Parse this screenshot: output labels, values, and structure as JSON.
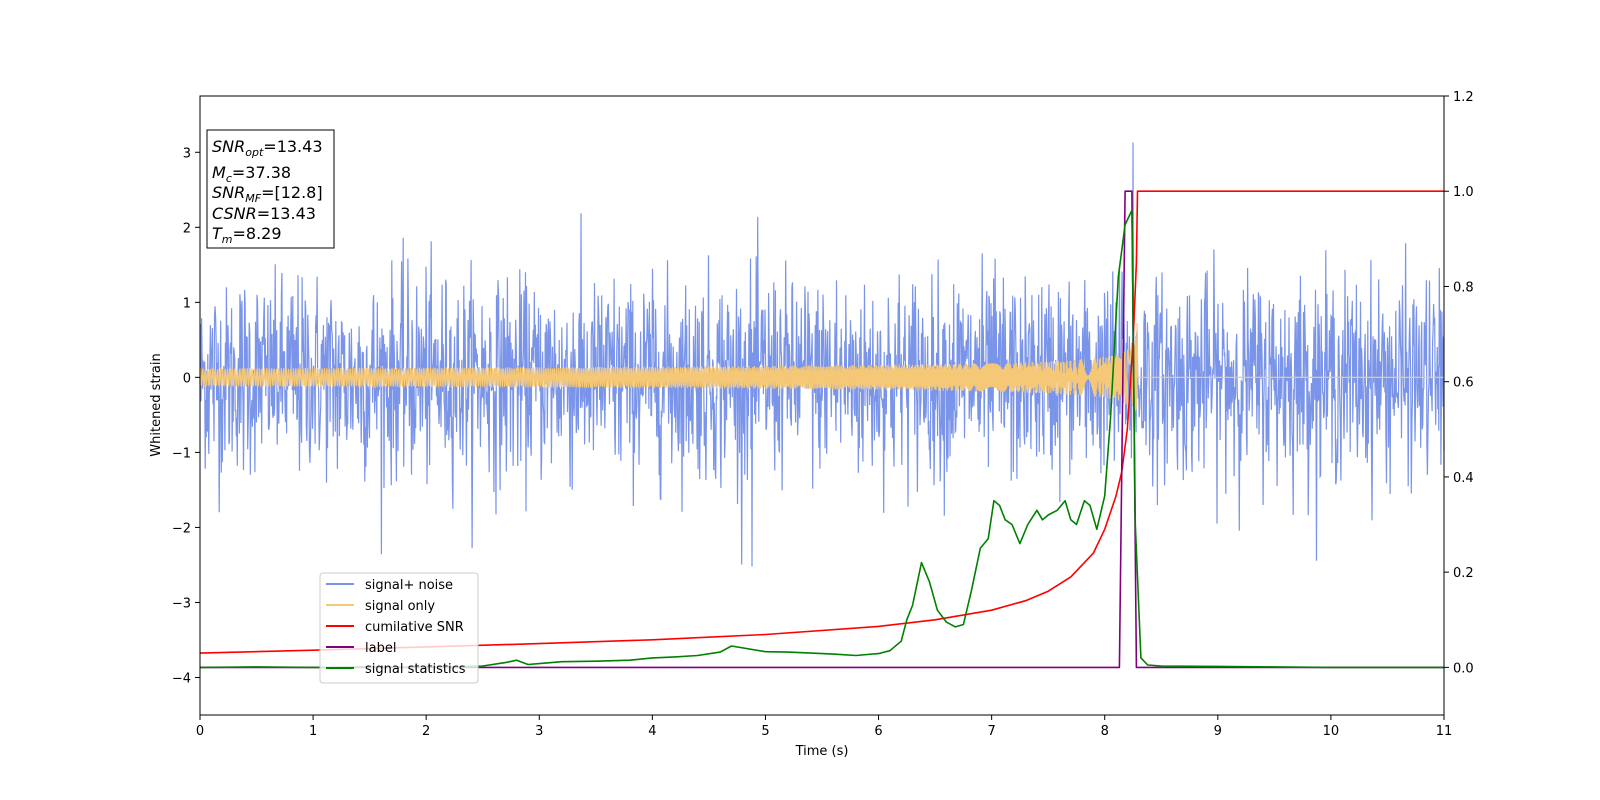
{
  "chart_data": {
    "type": "line",
    "xlabel": "Time (s)",
    "ylabel": "Whitened strain",
    "xlim": [
      0,
      11
    ],
    "ylim_left": [
      -4.5,
      3.75
    ],
    "ylim_right": [
      -0.1,
      1.2
    ],
    "x_ticks": [
      0,
      1,
      2,
      3,
      4,
      5,
      6,
      7,
      8,
      9,
      10,
      11
    ],
    "y_ticks_left": [
      -4,
      -3,
      -2,
      -1,
      0,
      1,
      2,
      3
    ],
    "y_ticks_right": [
      0.0,
      0.2,
      0.4,
      0.6,
      0.8,
      1.0,
      1.2
    ],
    "x_tick_labels": [
      "0",
      "1",
      "2",
      "3",
      "4",
      "5",
      "6",
      "7",
      "8",
      "9",
      "10",
      "11"
    ],
    "y_tick_labels_left": [
      "−4",
      "−3",
      "−2",
      "−1",
      "0",
      "1",
      "2",
      "3"
    ],
    "y_tick_labels_right": [
      "0.0",
      "0.2",
      "0.4",
      "0.6",
      "0.8",
      "1.0",
      "1.2"
    ],
    "grid": false,
    "legend_placement": "lower-left",
    "info_box": {
      "snr_opt": {
        "main": "SNR",
        "sub": "opt",
        "value": "=13.43"
      },
      "mc": {
        "main": "M",
        "sub": "c",
        "value": "=37.38"
      },
      "snr_mf": {
        "main": "SNR",
        "sub": "MF",
        "value": "=[12.8]"
      },
      "csnr": {
        "main": "CSNR",
        "value": "=13.43"
      },
      "tm": {
        "main": "T",
        "sub": "m",
        "value": "=8.29"
      }
    },
    "series": [
      {
        "name": "signal+ noise",
        "axis": "left",
        "color": "#7994e8",
        "description_values": {
          "noise_std": 0.65,
          "spike_max": 3.13,
          "spike_max_time": 8.25,
          "spike_min": -2.52,
          "spike_min_time": 4.88
        }
      },
      {
        "name": "signal only",
        "axis": "left",
        "color": "#f5c878",
        "chirp": {
          "end_time": 8.29,
          "peak_amplitude": 0.9
        }
      },
      {
        "name": "cumilative SNR",
        "axis": "right",
        "color": "#ff0000",
        "x": [
          0,
          1,
          2,
          3,
          4,
          5,
          6,
          6.5,
          7,
          7.3,
          7.5,
          7.7,
          7.9,
          8.0,
          8.1,
          8.15,
          8.2,
          8.25,
          8.28,
          8.29,
          11
        ],
        "values": [
          0.03,
          0.036,
          0.043,
          0.05,
          0.058,
          0.069,
          0.086,
          0.1,
          0.12,
          0.14,
          0.16,
          0.19,
          0.24,
          0.29,
          0.36,
          0.41,
          0.5,
          0.68,
          0.85,
          1.0,
          1.0
        ]
      },
      {
        "name": "label",
        "axis": "right",
        "color": "#800080",
        "x": [
          0,
          8.13,
          8.18,
          8.24,
          8.28,
          11
        ],
        "values": [
          0,
          0,
          1.0,
          1.0,
          0,
          0
        ]
      },
      {
        "name": "signal statistics",
        "axis": "right",
        "color": "#008000",
        "x": [
          0,
          0.5,
          1.0,
          1.5,
          2.0,
          2.5,
          2.7,
          2.8,
          2.9,
          3.0,
          3.2,
          3.5,
          3.8,
          4.0,
          4.2,
          4.4,
          4.6,
          4.7,
          5.0,
          5.2,
          5.4,
          5.6,
          5.8,
          5.9,
          6.0,
          6.1,
          6.2,
          6.25,
          6.3,
          6.38,
          6.45,
          6.52,
          6.6,
          6.68,
          6.75,
          6.82,
          6.9,
          6.97,
          7.02,
          7.07,
          7.12,
          7.18,
          7.25,
          7.32,
          7.4,
          7.45,
          7.5,
          7.58,
          7.65,
          7.7,
          7.75,
          7.82,
          7.87,
          7.93,
          8.0,
          8.05,
          8.12,
          8.18,
          8.24,
          8.27,
          8.32,
          8.38,
          8.5,
          9.0,
          9.5,
          10.0,
          11.0
        ],
        "values": [
          0.0,
          0.001,
          0.0,
          0.001,
          0.0,
          0.003,
          0.01,
          0.015,
          0.006,
          0.008,
          0.012,
          0.013,
          0.015,
          0.02,
          0.022,
          0.025,
          0.032,
          0.045,
          0.033,
          0.032,
          0.03,
          0.028,
          0.025,
          0.027,
          0.029,
          0.035,
          0.055,
          0.1,
          0.13,
          0.22,
          0.18,
          0.12,
          0.095,
          0.085,
          0.09,
          0.16,
          0.25,
          0.27,
          0.35,
          0.34,
          0.31,
          0.3,
          0.26,
          0.3,
          0.33,
          0.31,
          0.32,
          0.33,
          0.35,
          0.31,
          0.3,
          0.35,
          0.34,
          0.29,
          0.36,
          0.52,
          0.82,
          0.93,
          0.96,
          0.3,
          0.02,
          0.005,
          0.003,
          0.002,
          0.001,
          0.0,
          0.0
        ]
      }
    ]
  }
}
